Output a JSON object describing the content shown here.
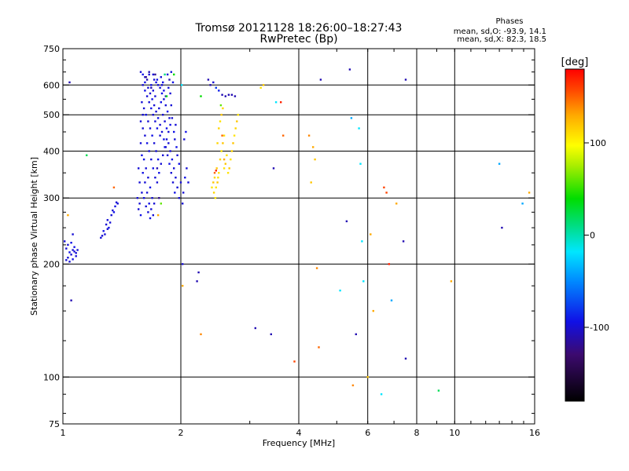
{
  "chart_data": {
    "type": "scatter",
    "title": "Tromsø 20121128 18:26:00–18:27:43",
    "subtitle": "RwPretec (Bp)",
    "xlabel": "Frequency [MHz]",
    "ylabel": "Stationary phase Virtual Height [km]",
    "x_scale": "log",
    "y_scale": "log",
    "xlim": [
      1,
      16
    ],
    "ylim": [
      75,
      750
    ],
    "x_ticks": [
      1,
      2,
      4,
      6,
      8,
      10,
      16
    ],
    "x_gridlines": [
      2,
      4,
      6,
      8,
      10
    ],
    "y_ticks": [
      75,
      100,
      200,
      300,
      400,
      500,
      600,
      750
    ],
    "y_gridlines": [
      100,
      200,
      300,
      400,
      500,
      600
    ],
    "grid": true,
    "phase_stats": {
      "heading": "Phases",
      "line_o": "mean, sd,O:  -93.9, 14.1",
      "line_x": "mean, sd,X:  82.3, 18.5"
    },
    "colorbar": {
      "label": "[deg]",
      "range": [
        -180,
        180
      ],
      "tick_values": [
        100,
        0,
        -100
      ],
      "tick_labels": [
        "100",
        "0",
        "-100"
      ]
    },
    "points": [
      [
        1.02,
        205,
        -100
      ],
      [
        1.03,
        208,
        -100
      ],
      [
        1.04,
        215,
        -95
      ],
      [
        1.05,
        212,
        -100
      ],
      [
        1.06,
        218,
        -100
      ],
      [
        1.07,
        222,
        -95
      ],
      [
        1.08,
        210,
        -100
      ],
      [
        1.09,
        218,
        -100
      ],
      [
        1.03,
        225,
        -100
      ],
      [
        1.05,
        228,
        -95
      ],
      [
        1.07,
        216,
        -100
      ],
      [
        1.04,
        203,
        -100
      ],
      [
        1.06,
        206,
        -95
      ],
      [
        1.08,
        214,
        -100
      ],
      [
        1.02,
        220,
        -100
      ],
      [
        1.01,
        230,
        -100
      ],
      [
        1.06,
        240,
        -100
      ],
      [
        1.04,
        610,
        -110
      ],
      [
        1.03,
        270,
        130
      ],
      [
        1.05,
        160,
        -110
      ],
      [
        1.15,
        390,
        20
      ],
      [
        1.25,
        235,
        -100
      ],
      [
        1.27,
        245,
        -95
      ],
      [
        1.29,
        255,
        -100
      ],
      [
        1.3,
        262,
        -100
      ],
      [
        1.31,
        250,
        -95
      ],
      [
        1.33,
        270,
        -100
      ],
      [
        1.34,
        278,
        -100
      ],
      [
        1.36,
        285,
        -95
      ],
      [
        1.37,
        292,
        -100
      ],
      [
        1.28,
        240,
        -100
      ],
      [
        1.32,
        258,
        -100
      ],
      [
        1.35,
        275,
        -95
      ],
      [
        1.26,
        238,
        -100
      ],
      [
        1.38,
        290,
        -100
      ],
      [
        1.3,
        248,
        -100
      ],
      [
        1.35,
        320,
        150
      ],
      [
        1.58,
        650,
        -100
      ],
      [
        1.6,
        640,
        -95
      ],
      [
        1.62,
        630,
        -100
      ],
      [
        1.64,
        620,
        -110
      ],
      [
        1.66,
        640,
        -100
      ],
      [
        1.68,
        600,
        -95
      ],
      [
        1.7,
        580,
        -100
      ],
      [
        1.72,
        560,
        -100
      ],
      [
        1.74,
        620,
        -95
      ],
      [
        1.59,
        540,
        -100
      ],
      [
        1.61,
        520,
        -100
      ],
      [
        1.63,
        500,
        -95
      ],
      [
        1.65,
        480,
        -100
      ],
      [
        1.67,
        460,
        -100
      ],
      [
        1.69,
        440,
        -95
      ],
      [
        1.71,
        420,
        -100
      ],
      [
        1.73,
        400,
        -100
      ],
      [
        1.75,
        380,
        -95
      ],
      [
        1.6,
        460,
        -100
      ],
      [
        1.62,
        440,
        -100
      ],
      [
        1.64,
        420,
        -95
      ],
      [
        1.66,
        400,
        -100
      ],
      [
        1.68,
        380,
        -100
      ],
      [
        1.7,
        360,
        -95
      ],
      [
        1.72,
        340,
        -100
      ],
      [
        1.58,
        420,
        -100
      ],
      [
        1.61,
        380,
        -95
      ],
      [
        1.63,
        360,
        -100
      ],
      [
        1.65,
        340,
        -100
      ],
      [
        1.67,
        320,
        -95
      ],
      [
        1.69,
        300,
        -100
      ],
      [
        1.71,
        290,
        -100
      ],
      [
        1.6,
        350,
        -95
      ],
      [
        1.62,
        330,
        -100
      ],
      [
        1.64,
        310,
        -100
      ],
      [
        1.66,
        290,
        -95
      ],
      [
        1.68,
        280,
        -100
      ],
      [
        1.7,
        270,
        -100
      ],
      [
        1.59,
        310,
        -100
      ],
      [
        1.61,
        300,
        -95
      ],
      [
        1.63,
        285,
        -100
      ],
      [
        1.65,
        275,
        -100
      ],
      [
        1.67,
        265,
        -95
      ],
      [
        1.57,
        290,
        -100
      ],
      [
        1.74,
        330,
        -100
      ],
      [
        1.76,
        350,
        -95
      ],
      [
        1.78,
        370,
        -100
      ],
      [
        1.8,
        390,
        -100
      ],
      [
        1.82,
        410,
        -95
      ],
      [
        1.84,
        430,
        -100
      ],
      [
        1.86,
        450,
        -100
      ],
      [
        1.88,
        470,
        -95
      ],
      [
        1.9,
        490,
        -100
      ],
      [
        1.76,
        520,
        -100
      ],
      [
        1.78,
        540,
        -95
      ],
      [
        1.8,
        500,
        -100
      ],
      [
        1.82,
        480,
        -100
      ],
      [
        1.84,
        460,
        -95
      ],
      [
        1.86,
        420,
        -100
      ],
      [
        1.88,
        400,
        -100
      ],
      [
        1.9,
        380,
        -95
      ],
      [
        1.92,
        360,
        -100
      ],
      [
        1.94,
        340,
        -100
      ],
      [
        1.79,
        600,
        -100
      ],
      [
        1.81,
        580,
        -95
      ],
      [
        1.83,
        560,
        -100
      ],
      [
        1.85,
        640,
        -100
      ],
      [
        1.87,
        620,
        -110
      ],
      [
        1.89,
        650,
        -100
      ],
      [
        1.91,
        610,
        -95
      ],
      [
        1.77,
        440,
        -100
      ],
      [
        1.93,
        430,
        -100
      ],
      [
        1.95,
        410,
        -95
      ],
      [
        1.96,
        320,
        -100
      ],
      [
        1.98,
        300,
        -100
      ],
      [
        1.62,
        580,
        -95
      ],
      [
        1.64,
        560,
        -100
      ],
      [
        1.66,
        540,
        -100
      ],
      [
        1.68,
        520,
        -95
      ],
      [
        1.7,
        500,
        -100
      ],
      [
        1.72,
        480,
        -100
      ],
      [
        1.74,
        460,
        -95
      ],
      [
        1.6,
        600,
        -100
      ],
      [
        1.7,
        640,
        -100
      ],
      [
        1.73,
        610,
        -95
      ],
      [
        1.75,
        600,
        -100
      ],
      [
        1.77,
        590,
        -100
      ],
      [
        1.79,
        570,
        -95
      ],
      [
        1.81,
        550,
        -100
      ],
      [
        1.83,
        530,
        -100
      ],
      [
        1.85,
        510,
        -95
      ],
      [
        1.87,
        490,
        -100
      ],
      [
        1.89,
        530,
        -100
      ],
      [
        1.92,
        450,
        -95
      ],
      [
        1.94,
        470,
        -100
      ],
      [
        1.96,
        390,
        -100
      ],
      [
        1.98,
        370,
        -95
      ],
      [
        2.0,
        330,
        -100
      ],
      [
        1.55,
        300,
        -100
      ],
      [
        1.56,
        280,
        -100
      ],
      [
        1.58,
        270,
        -95
      ],
      [
        1.57,
        330,
        -100
      ],
      [
        1.56,
        360,
        -100
      ],
      [
        1.59,
        390,
        -95
      ],
      [
        1.58,
        480,
        -100
      ],
      [
        1.6,
        500,
        -100
      ],
      [
        1.62,
        610,
        -95
      ],
      [
        1.65,
        590,
        -100
      ],
      [
        1.67,
        570,
        -100
      ],
      [
        1.69,
        550,
        -95
      ],
      [
        1.71,
        530,
        -100
      ],
      [
        1.73,
        510,
        -100
      ],
      [
        1.75,
        490,
        -95
      ],
      [
        1.77,
        470,
        -100
      ],
      [
        1.79,
        450,
        -100
      ],
      [
        1.81,
        430,
        -95
      ],
      [
        1.83,
        410,
        -100
      ],
      [
        1.85,
        390,
        -100
      ],
      [
        1.87,
        370,
        -95
      ],
      [
        1.89,
        350,
        -100
      ],
      [
        1.91,
        330,
        -100
      ],
      [
        1.93,
        310,
        -95
      ],
      [
        1.74,
        360,
        -110
      ],
      [
        1.76,
        300,
        -120
      ],
      [
        1.72,
        640,
        -120
      ],
      [
        1.66,
        650,
        -110
      ],
      [
        1.63,
        630,
        -120
      ],
      [
        1.68,
        590,
        -110
      ],
      [
        1.71,
        620,
        -100
      ],
      [
        1.78,
        630,
        -100
      ],
      [
        1.8,
        610,
        -95
      ],
      [
        1.86,
        590,
        -100
      ],
      [
        1.88,
        570,
        -100
      ],
      [
        1.75,
        270,
        130
      ],
      [
        1.78,
        290,
        60
      ],
      [
        1.92,
        640,
        40
      ],
      [
        1.84,
        560,
        40
      ],
      [
        1.82,
        640,
        10
      ],
      [
        2.02,
        290,
        -100
      ],
      [
        2.03,
        310,
        -100
      ],
      [
        2.05,
        340,
        -95
      ],
      [
        2.07,
        360,
        -100
      ],
      [
        2.09,
        330,
        -100
      ],
      [
        2.04,
        430,
        -100
      ],
      [
        2.06,
        450,
        -95
      ],
      [
        2.02,
        200,
        -100
      ],
      [
        2.01,
        600,
        -20
      ],
      [
        2.2,
        180,
        -110
      ],
      [
        2.22,
        190,
        -110
      ],
      [
        2.25,
        130,
        140
      ],
      [
        2.02,
        175,
        130
      ],
      [
        2.25,
        560,
        40
      ],
      [
        2.35,
        620,
        -110
      ],
      [
        2.38,
        600,
        -110
      ],
      [
        2.42,
        610,
        -100
      ],
      [
        2.46,
        590,
        -80
      ],
      [
        2.5,
        580,
        -90
      ],
      [
        2.55,
        565,
        -110
      ],
      [
        2.6,
        560,
        -110
      ],
      [
        2.65,
        565,
        -110
      ],
      [
        2.7,
        565,
        -110
      ],
      [
        2.75,
        560,
        -110
      ],
      [
        2.53,
        530,
        60
      ],
      [
        2.4,
        320,
        110
      ],
      [
        2.42,
        330,
        120
      ],
      [
        2.44,
        340,
        115
      ],
      [
        2.46,
        320,
        110
      ],
      [
        2.48,
        330,
        120
      ],
      [
        2.5,
        350,
        110
      ],
      [
        2.43,
        310,
        115
      ],
      [
        2.45,
        300,
        110
      ],
      [
        2.47,
        360,
        120
      ],
      [
        2.49,
        340,
        110
      ],
      [
        2.52,
        380,
        115
      ],
      [
        2.54,
        400,
        110
      ],
      [
        2.56,
        420,
        120
      ],
      [
        2.58,
        440,
        110
      ],
      [
        2.5,
        460,
        115
      ],
      [
        2.52,
        480,
        110
      ],
      [
        2.54,
        500,
        120
      ],
      [
        2.56,
        520,
        115
      ],
      [
        2.58,
        360,
        110
      ],
      [
        2.6,
        370,
        120
      ],
      [
        2.62,
        390,
        110
      ],
      [
        2.48,
        420,
        115
      ],
      [
        2.44,
        350,
        150
      ],
      [
        2.46,
        355,
        170
      ],
      [
        2.66,
        360,
        120
      ],
      [
        2.68,
        380,
        110
      ],
      [
        2.7,
        400,
        115
      ],
      [
        2.72,
        420,
        120
      ],
      [
        2.74,
        440,
        110
      ],
      [
        2.76,
        460,
        115
      ],
      [
        2.78,
        480,
        120
      ],
      [
        2.8,
        500,
        110
      ],
      [
        2.64,
        350,
        110
      ],
      [
        2.55,
        440,
        150
      ],
      [
        2.58,
        380,
        130
      ],
      [
        3.1,
        135,
        -110
      ],
      [
        3.2,
        590,
        110
      ],
      [
        3.25,
        600,
        120
      ],
      [
        3.4,
        130,
        -110
      ],
      [
        3.45,
        360,
        -110
      ],
      [
        3.5,
        540,
        -20
      ],
      [
        3.6,
        540,
        170
      ],
      [
        3.65,
        440,
        150
      ],
      [
        3.9,
        110,
        160
      ],
      [
        4.25,
        440,
        140
      ],
      [
        4.3,
        330,
        120
      ],
      [
        4.35,
        410,
        130
      ],
      [
        4.4,
        380,
        120
      ],
      [
        4.45,
        195,
        140
      ],
      [
        4.5,
        120,
        150
      ],
      [
        4.55,
        620,
        -110
      ],
      [
        5.1,
        170,
        -20
      ],
      [
        5.3,
        260,
        -110
      ],
      [
        5.4,
        660,
        -110
      ],
      [
        5.45,
        490,
        -40
      ],
      [
        5.5,
        95,
        140
      ],
      [
        5.6,
        130,
        -110
      ],
      [
        5.7,
        460,
        -20
      ],
      [
        5.75,
        370,
        -20
      ],
      [
        5.8,
        230,
        -20
      ],
      [
        5.85,
        180,
        -20
      ],
      [
        6.0,
        100,
        120
      ],
      [
        6.1,
        240,
        130
      ],
      [
        6.2,
        150,
        130
      ],
      [
        6.5,
        90,
        -20
      ],
      [
        6.6,
        320,
        160
      ],
      [
        6.7,
        310,
        160
      ],
      [
        6.8,
        200,
        170
      ],
      [
        6.9,
        160,
        -40
      ],
      [
        7.1,
        290,
        130
      ],
      [
        7.4,
        230,
        -110
      ],
      [
        7.5,
        620,
        -110
      ],
      [
        7.5,
        112,
        -110
      ],
      [
        9.1,
        92,
        20
      ],
      [
        9.8,
        180,
        130
      ],
      [
        13.0,
        370,
        -40
      ],
      [
        13.2,
        250,
        -110
      ],
      [
        14.9,
        290,
        -40
      ],
      [
        15.5,
        310,
        130
      ]
    ]
  }
}
